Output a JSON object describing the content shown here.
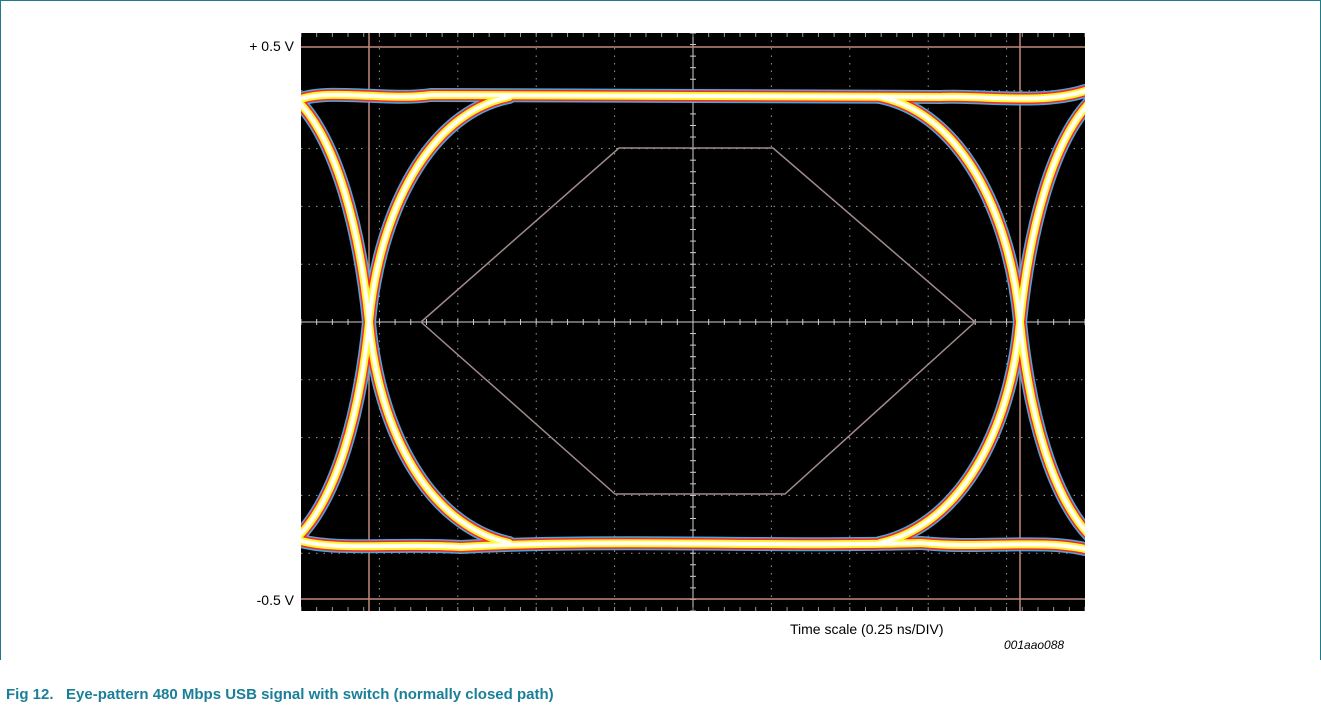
{
  "chart_data": {
    "type": "eye-diagram",
    "y_axis": {
      "top_label": "+ 0.5 V",
      "bottom_label": "-0.5 V",
      "range": [
        -0.5,
        0.5
      ]
    },
    "x_axis": {
      "label": "Time scale (0.25 ns/DIV)",
      "divisions": 10
    },
    "grid": true,
    "vertical_divisions": 10,
    "figure_code": "001aao088",
    "colors": {
      "background": "#000000",
      "trace_core": "#ffffff",
      "trace_hot": "#ffff33",
      "trace_warm": "#ff2020",
      "trace_edge": "#4fb0e8",
      "mask": "#a08a8a",
      "marker_lines": "#c08a7a"
    }
  },
  "caption": {
    "text": "Fig 12.   Eye-pattern 480 Mbps USB signal with switch (normally closed path)"
  }
}
